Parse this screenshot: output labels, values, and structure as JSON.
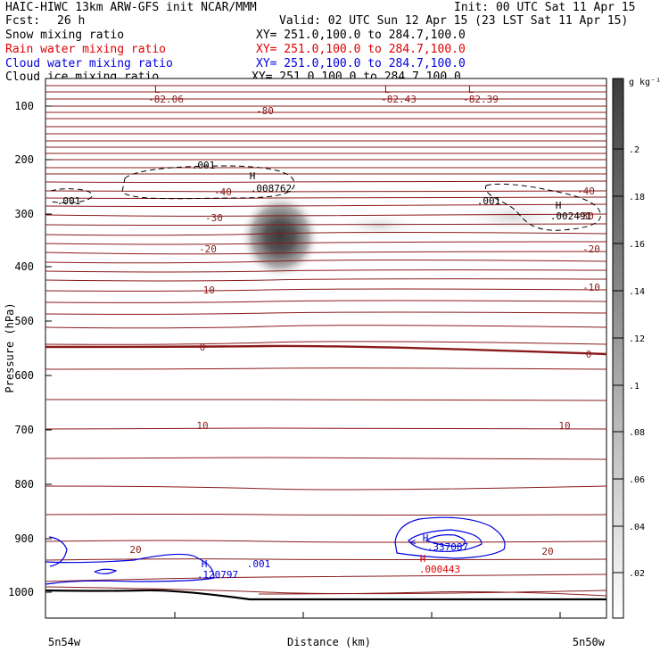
{
  "header": {
    "title": "HAIC-HIWC 13km ARW-GFS init   NCAR/MMM",
    "init": "Init: 00 UTC Sat 11 Apr 15",
    "fcst_label": "Fcst:",
    "fcst_value": "26 h",
    "valid": "Valid: 02 UTC Sun 12 Apr 15 (23 LST Sat 11 Apr 15)"
  },
  "fields": [
    {
      "name": "Snow mixing ratio",
      "xy": "XY= 251.0,100.0 to 284.7,100.0",
      "color": "#000000"
    },
    {
      "name": "Rain water mixing ratio",
      "xy": "XY= 251.0,100.0 to 284.7,100.0",
      "color": "#e00000"
    },
    {
      "name": "Cloud water mixing ratio",
      "xy": "XY= 251.0,100.0 to 284.7,100.0",
      "color": "#0000e0"
    },
    {
      "name": "Cloud ice mixing ratio",
      "xy": "XY= 251.0,100.0 to 284.7,100.0",
      "color": "#000000"
    }
  ],
  "axes": {
    "ylabel": "Pressure (hPa)",
    "xlabel": "Distance (km)",
    "yticks": [
      "100",
      "200",
      "300",
      "400",
      "500",
      "600",
      "700",
      "800",
      "900",
      "1000"
    ],
    "x_left": "5n54w",
    "x_right": "5n50w"
  },
  "colorbar": {
    "unit": "g kg⁻¹",
    "ticks": [
      ".2",
      ".18",
      ".16",
      ".14",
      ".12",
      ".1",
      ".08",
      ".06",
      ".04",
      ".02"
    ]
  },
  "temp_labels": [
    "-80",
    "-40",
    "-30",
    "-20",
    "-10",
    "0",
    "10",
    "20",
    "-40",
    "-20",
    "-10",
    "0",
    "10",
    "20",
    "-30"
  ],
  "extrema": {
    "lows": [
      {
        "symbol": "L",
        "value": "-82.06"
      },
      {
        "symbol": "L",
        "value": "-82.43"
      },
      {
        "symbol": "L",
        "value": "-82.39"
      }
    ],
    "highs": [
      {
        "symbol": "H",
        "value": ".008762"
      },
      {
        "symbol": "H",
        "value": ".002491"
      },
      {
        "symbol": "H",
        "value": ".120797"
      },
      {
        "symbol": "H",
        "value": ".337087"
      },
      {
        "symbol": "H",
        "value": ".000443"
      }
    ],
    "contour_labels": [
      ".001",
      ".001",
      ".001",
      ".001"
    ],
    "misc": "<"
  },
  "colors": {
    "temp": "#8b1a1a",
    "snow": "#555555",
    "cloud_water": "#0000e0",
    "rain": "#e00000"
  }
}
